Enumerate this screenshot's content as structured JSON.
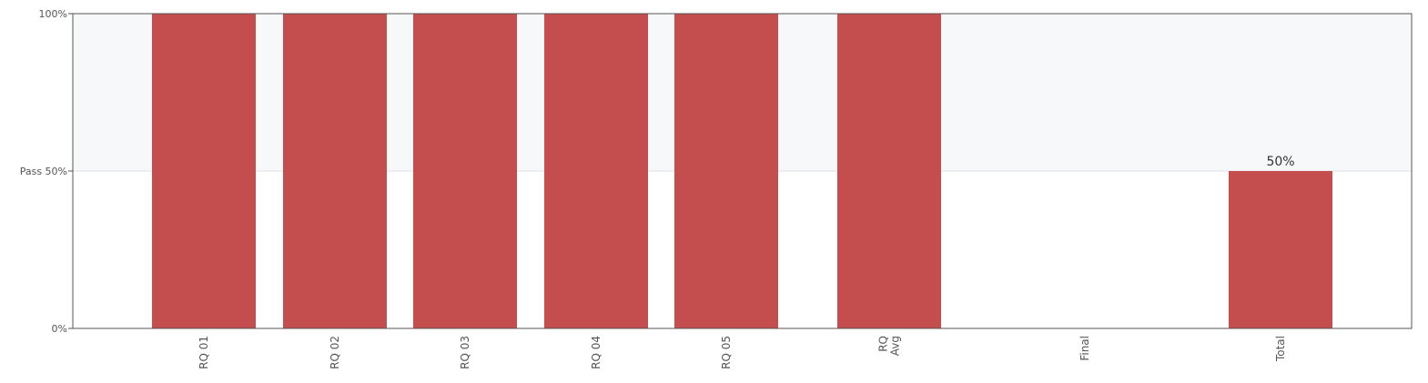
{
  "chart_data": {
    "type": "bar",
    "categories": [
      "RQ 01",
      "RQ 02",
      "RQ 03",
      "RQ 04",
      "RQ 05",
      "RQ Avg",
      "Final",
      "Total"
    ],
    "values": [
      100,
      100,
      100,
      100,
      100,
      100,
      0,
      50
    ],
    "data_labels": [
      "",
      "",
      "",
      "",
      "",
      "",
      "",
      "50%"
    ],
    "ylim": [
      0,
      100
    ],
    "y_ticks": [
      {
        "value": 0,
        "label": "0%"
      },
      {
        "value": 50,
        "label": "Pass 50%"
      },
      {
        "value": 100,
        "label": "100%"
      }
    ],
    "pass_band": [
      50,
      100
    ],
    "colors": {
      "bar": "#c44e4e",
      "pass_band": "#f7f8fa",
      "axis": "#555555",
      "gridline": "#dde1e8"
    },
    "title": "",
    "xlabel": "",
    "ylabel": ""
  }
}
